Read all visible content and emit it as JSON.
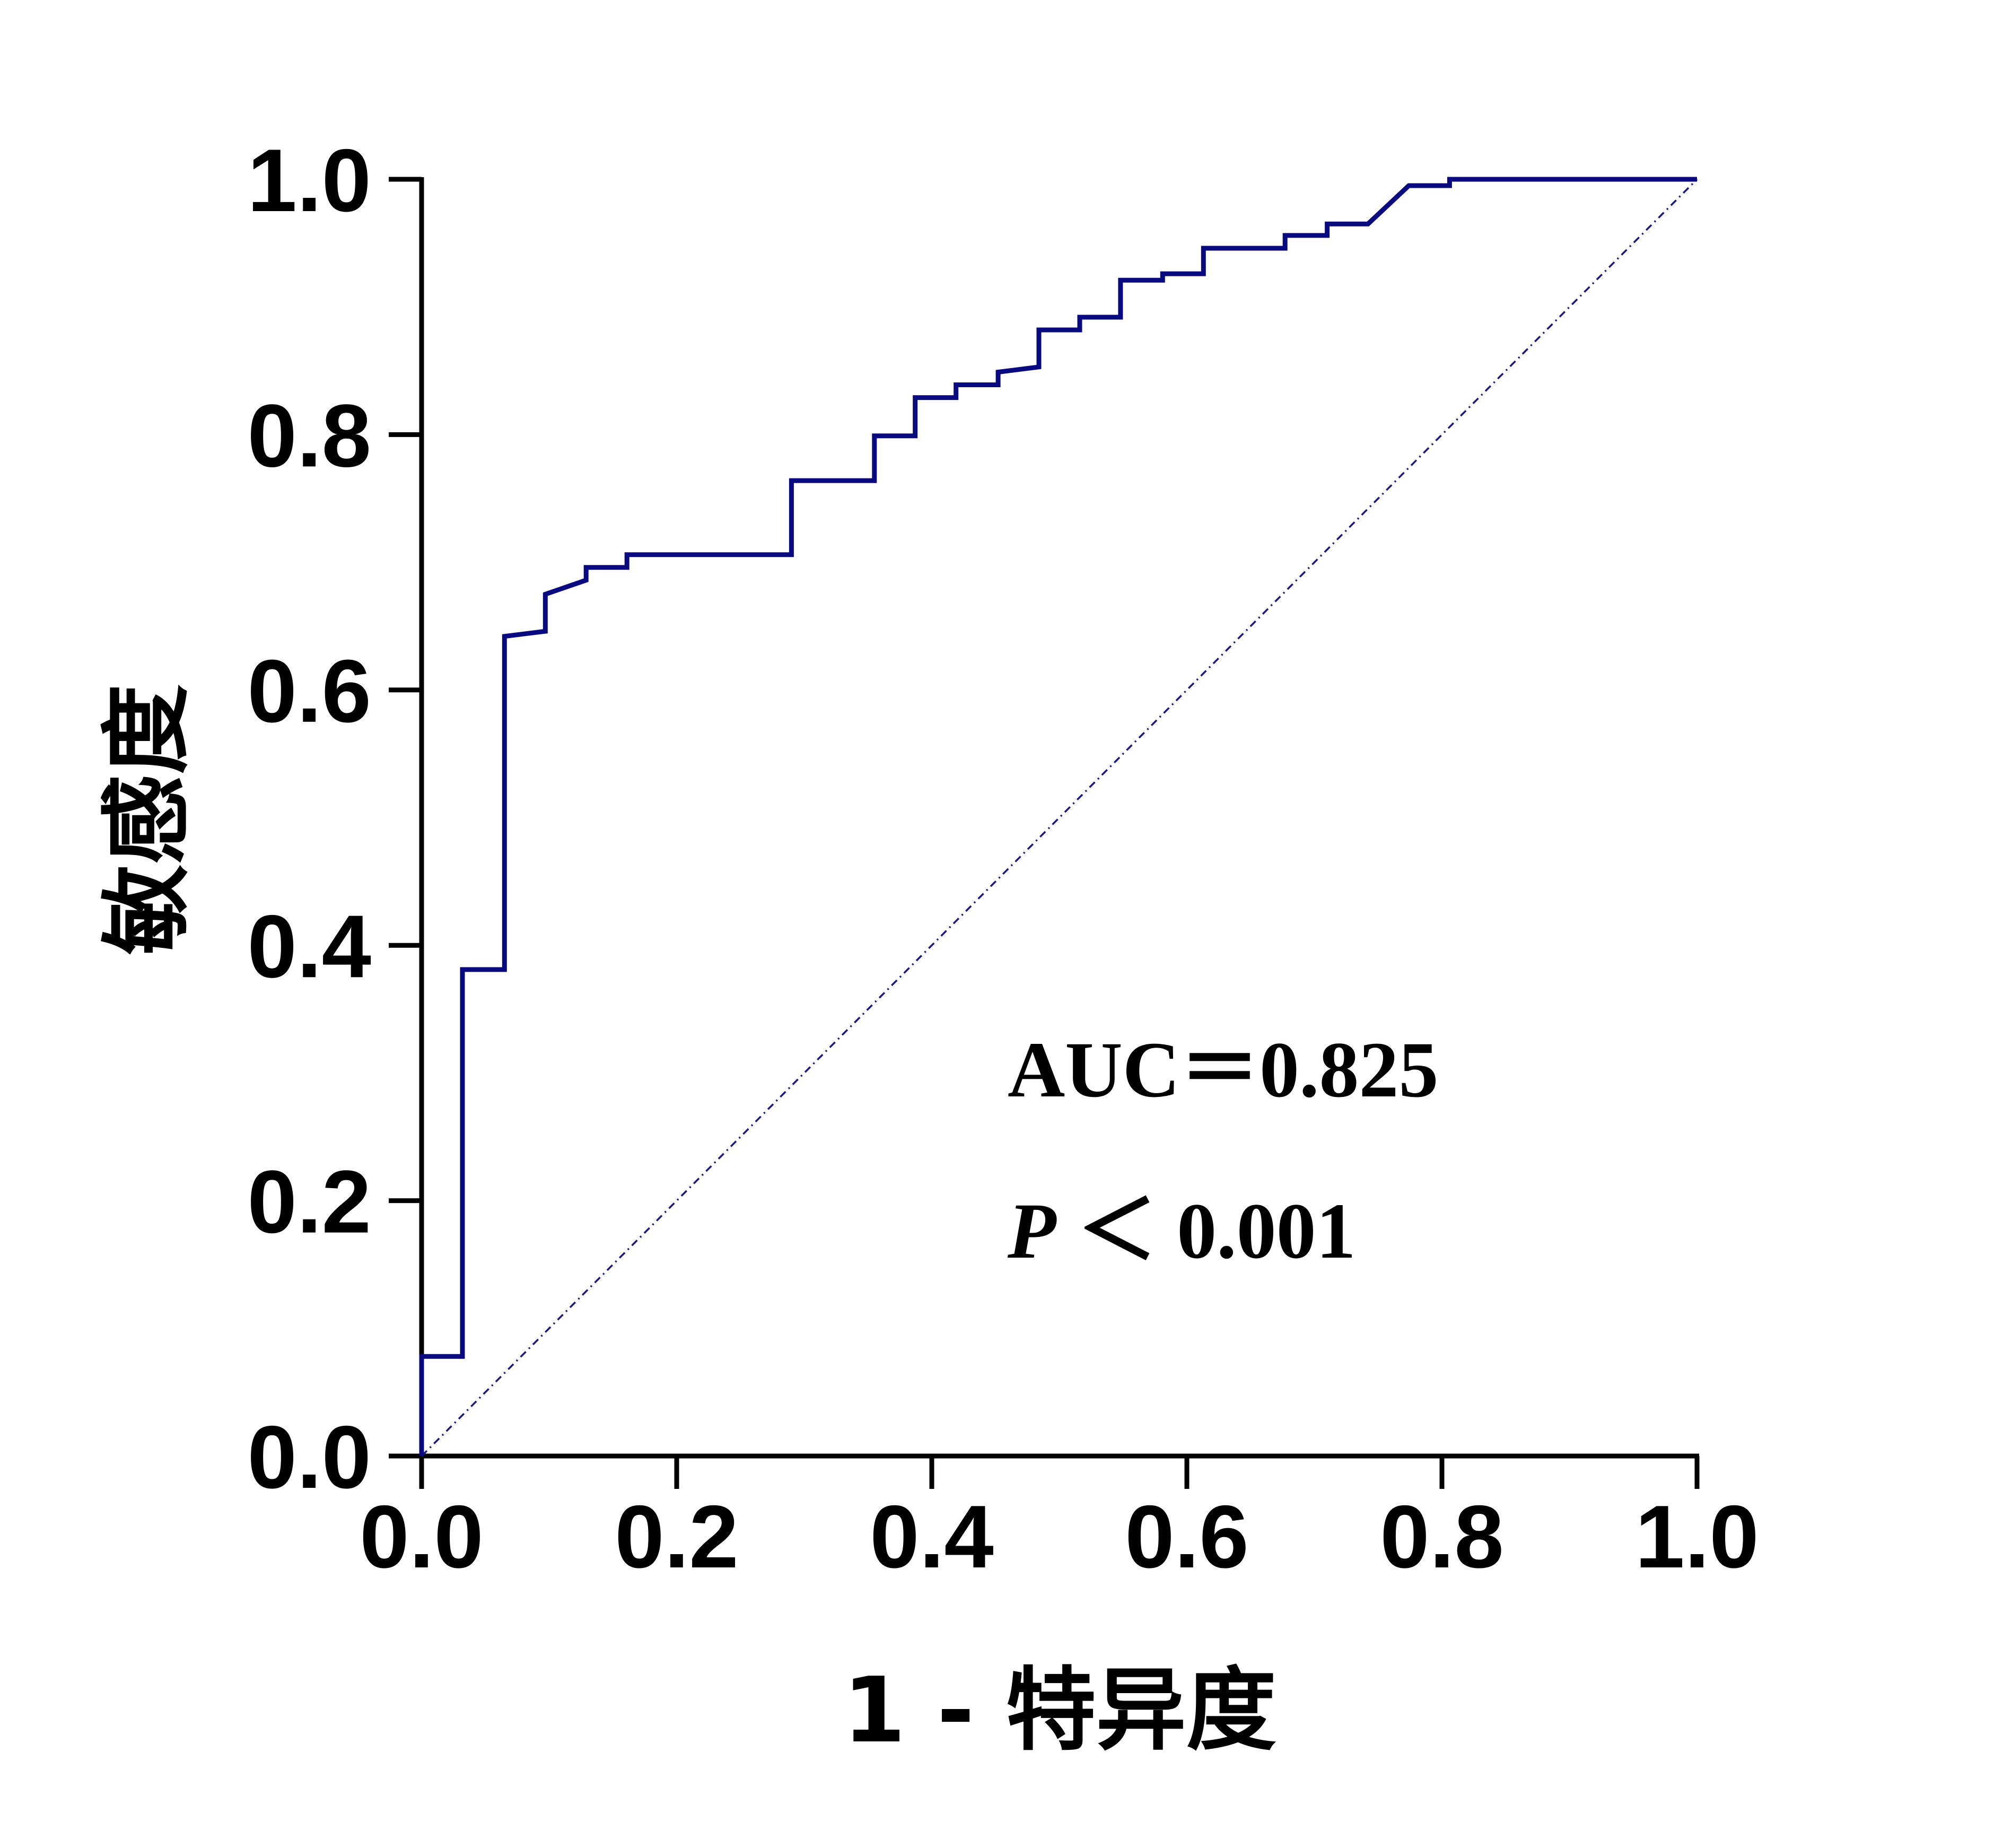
{
  "chart_data": {
    "type": "line",
    "title": "",
    "xlabel": "1 - 特异度",
    "ylabel": "敏感度",
    "xlim": [
      0,
      1
    ],
    "ylim": [
      0,
      1
    ],
    "x_ticks": [
      "0.0",
      "0.2",
      "0.4",
      "0.6",
      "0.8",
      "1.0"
    ],
    "y_ticks": [
      "0.0",
      "0.2",
      "0.4",
      "0.6",
      "0.8",
      "1.0"
    ],
    "grid": false,
    "legend": "none",
    "colors": {
      "roc": "#0a0a80",
      "reference": "#1a1a80",
      "axis": "#000000"
    },
    "series": [
      {
        "style": "step",
        "points": [
          [
            0.0,
            0.0
          ],
          [
            0.0,
            0.078
          ],
          [
            0.032,
            0.078
          ],
          [
            0.032,
            0.381
          ],
          [
            0.065,
            0.381
          ],
          [
            0.065,
            0.642
          ],
          [
            0.097,
            0.646
          ],
          [
            0.097,
            0.675
          ],
          [
            0.129,
            0.686
          ],
          [
            0.129,
            0.696
          ],
          [
            0.161,
            0.696
          ],
          [
            0.161,
            0.706
          ],
          [
            0.29,
            0.706
          ],
          [
            0.29,
            0.764
          ],
          [
            0.355,
            0.764
          ],
          [
            0.355,
            0.799
          ],
          [
            0.387,
            0.799
          ],
          [
            0.387,
            0.829
          ],
          [
            0.419,
            0.829
          ],
          [
            0.419,
            0.839
          ],
          [
            0.452,
            0.839
          ],
          [
            0.452,
            0.849
          ],
          [
            0.484,
            0.853
          ],
          [
            0.484,
            0.882
          ],
          [
            0.516,
            0.882
          ],
          [
            0.516,
            0.892
          ],
          [
            0.548,
            0.892
          ],
          [
            0.548,
            0.921
          ],
          [
            0.581,
            0.921
          ],
          [
            0.581,
            0.926
          ],
          [
            0.613,
            0.926
          ],
          [
            0.613,
            0.946
          ],
          [
            0.677,
            0.946
          ],
          [
            0.677,
            0.956
          ],
          [
            0.71,
            0.956
          ],
          [
            0.71,
            0.965
          ],
          [
            0.742,
            0.965
          ],
          [
            0.774,
            0.995
          ],
          [
            0.806,
            0.995
          ],
          [
            0.806,
            1.0
          ],
          [
            1.0,
            1.0
          ]
        ]
      },
      {
        "style": "reference-diagonal",
        "points": [
          [
            0,
            0
          ],
          [
            1,
            1
          ]
        ]
      }
    ],
    "annotations": [
      {
        "text": "AUC＝0.825"
      },
      {
        "prefix": "P",
        "text": "＜ 0.001"
      }
    ]
  }
}
